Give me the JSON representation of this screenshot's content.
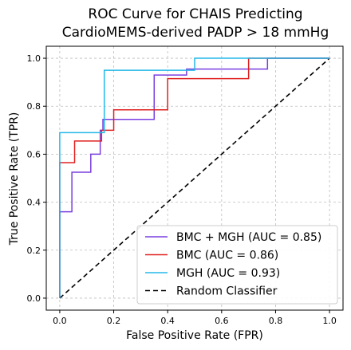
{
  "chart_data": {
    "type": "line",
    "title": [
      "ROC Curve for CHAIS Predicting",
      "CardioMEMS-derived PADP > 18 mmHg"
    ],
    "xlabel": "False Positive Rate (FPR)",
    "ylabel": "True Positive Rate (TPR)",
    "xlim": [
      -0.05,
      1.05
    ],
    "ylim": [
      -0.05,
      1.05
    ],
    "xticks": [
      "0.0",
      "0.2",
      "0.4",
      "0.6",
      "0.8",
      "1.0"
    ],
    "yticks": [
      "0.0",
      "0.2",
      "0.4",
      "0.6",
      "0.8",
      "1.0"
    ],
    "grid": true,
    "legend_position": "lower-right",
    "series": [
      {
        "name": "BMC + MGH (AUC = 0.85)",
        "color": "#7a3ee0",
        "dashed": false,
        "points": [
          [
            0,
            0
          ],
          [
            0,
            0.36
          ],
          [
            0.045,
            0.36
          ],
          [
            0.045,
            0.525
          ],
          [
            0.115,
            0.525
          ],
          [
            0.115,
            0.6
          ],
          [
            0.15,
            0.6
          ],
          [
            0.15,
            0.7
          ],
          [
            0.16,
            0.7
          ],
          [
            0.16,
            0.745
          ],
          [
            0.35,
            0.745
          ],
          [
            0.35,
            0.93
          ],
          [
            0.47,
            0.93
          ],
          [
            0.47,
            0.955
          ],
          [
            0.77,
            0.955
          ],
          [
            0.77,
            1.0
          ],
          [
            1.0,
            1.0
          ]
        ]
      },
      {
        "name": "BMC (AUC = 0.86)",
        "color": "#e02020",
        "dashed": false,
        "points": [
          [
            0,
            0
          ],
          [
            0,
            0.565
          ],
          [
            0.055,
            0.565
          ],
          [
            0.055,
            0.655
          ],
          [
            0.155,
            0.655
          ],
          [
            0.155,
            0.7
          ],
          [
            0.2,
            0.7
          ],
          [
            0.2,
            0.785
          ],
          [
            0.4,
            0.785
          ],
          [
            0.4,
            0.915
          ],
          [
            0.7,
            0.915
          ],
          [
            0.7,
            1.0
          ],
          [
            1.0,
            1.0
          ]
        ]
      },
      {
        "name": "MGH (AUC = 0.93)",
        "color": "#24b8e8",
        "dashed": false,
        "points": [
          [
            0,
            0
          ],
          [
            0,
            0.69
          ],
          [
            0.165,
            0.69
          ],
          [
            0.165,
            0.95
          ],
          [
            0.5,
            0.95
          ],
          [
            0.5,
            1.0
          ],
          [
            1.0,
            1.0
          ]
        ]
      },
      {
        "name": "Random Classifier",
        "color": "#000000",
        "dashed": true,
        "points": [
          [
            0,
            0
          ],
          [
            1,
            1
          ]
        ]
      }
    ]
  }
}
